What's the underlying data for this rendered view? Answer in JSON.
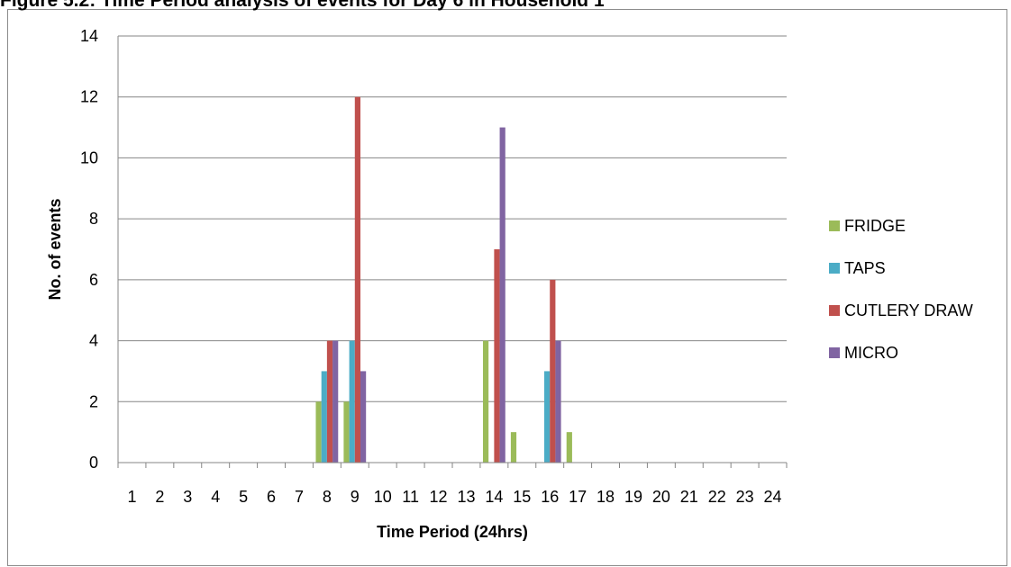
{
  "page": {
    "title": "Figure 5.2: Time Period analysis of events for Day 6 in Household 1"
  },
  "chart_data": {
    "type": "bar",
    "xlabel": "Time Period (24hrs)",
    "ylabel": "No. of events",
    "ylim": [
      0,
      14
    ],
    "yticks": [
      0,
      2,
      4,
      6,
      8,
      10,
      12,
      14
    ],
    "grid": true,
    "legend_position": "right",
    "categories": [
      "1",
      "2",
      "3",
      "4",
      "5",
      "6",
      "7",
      "8",
      "9",
      "10",
      "11",
      "12",
      "13",
      "14",
      "15",
      "16",
      "17",
      "18",
      "19",
      "20",
      "21",
      "22",
      "23",
      "24"
    ],
    "series": [
      {
        "name": "FRIDGE",
        "color": "#9bbb59",
        "values": [
          0,
          0,
          0,
          0,
          0,
          0,
          0,
          2,
          2,
          0,
          0,
          0,
          0,
          4,
          1,
          0,
          1,
          0,
          0,
          0,
          0,
          0,
          0,
          0
        ]
      },
      {
        "name": "TAPS",
        "color": "#4bacc6",
        "values": [
          0,
          0,
          0,
          0,
          0,
          0,
          0,
          3,
          4,
          0,
          0,
          0,
          0,
          0,
          0,
          3,
          0,
          0,
          0,
          0,
          0,
          0,
          0,
          0
        ]
      },
      {
        "name": "CUTLERY DRAW",
        "color": "#c0504d",
        "values": [
          0,
          0,
          0,
          0,
          0,
          0,
          0,
          4,
          12,
          0,
          0,
          0,
          0,
          7,
          0,
          6,
          0,
          0,
          0,
          0,
          0,
          0,
          0,
          0
        ]
      },
      {
        "name": "MICRO",
        "color": "#8064a2",
        "values": [
          0,
          0,
          0,
          0,
          0,
          0,
          0,
          4,
          3,
          0,
          0,
          0,
          0,
          11,
          0,
          4,
          0,
          0,
          0,
          0,
          0,
          0,
          0,
          0
        ]
      }
    ]
  }
}
